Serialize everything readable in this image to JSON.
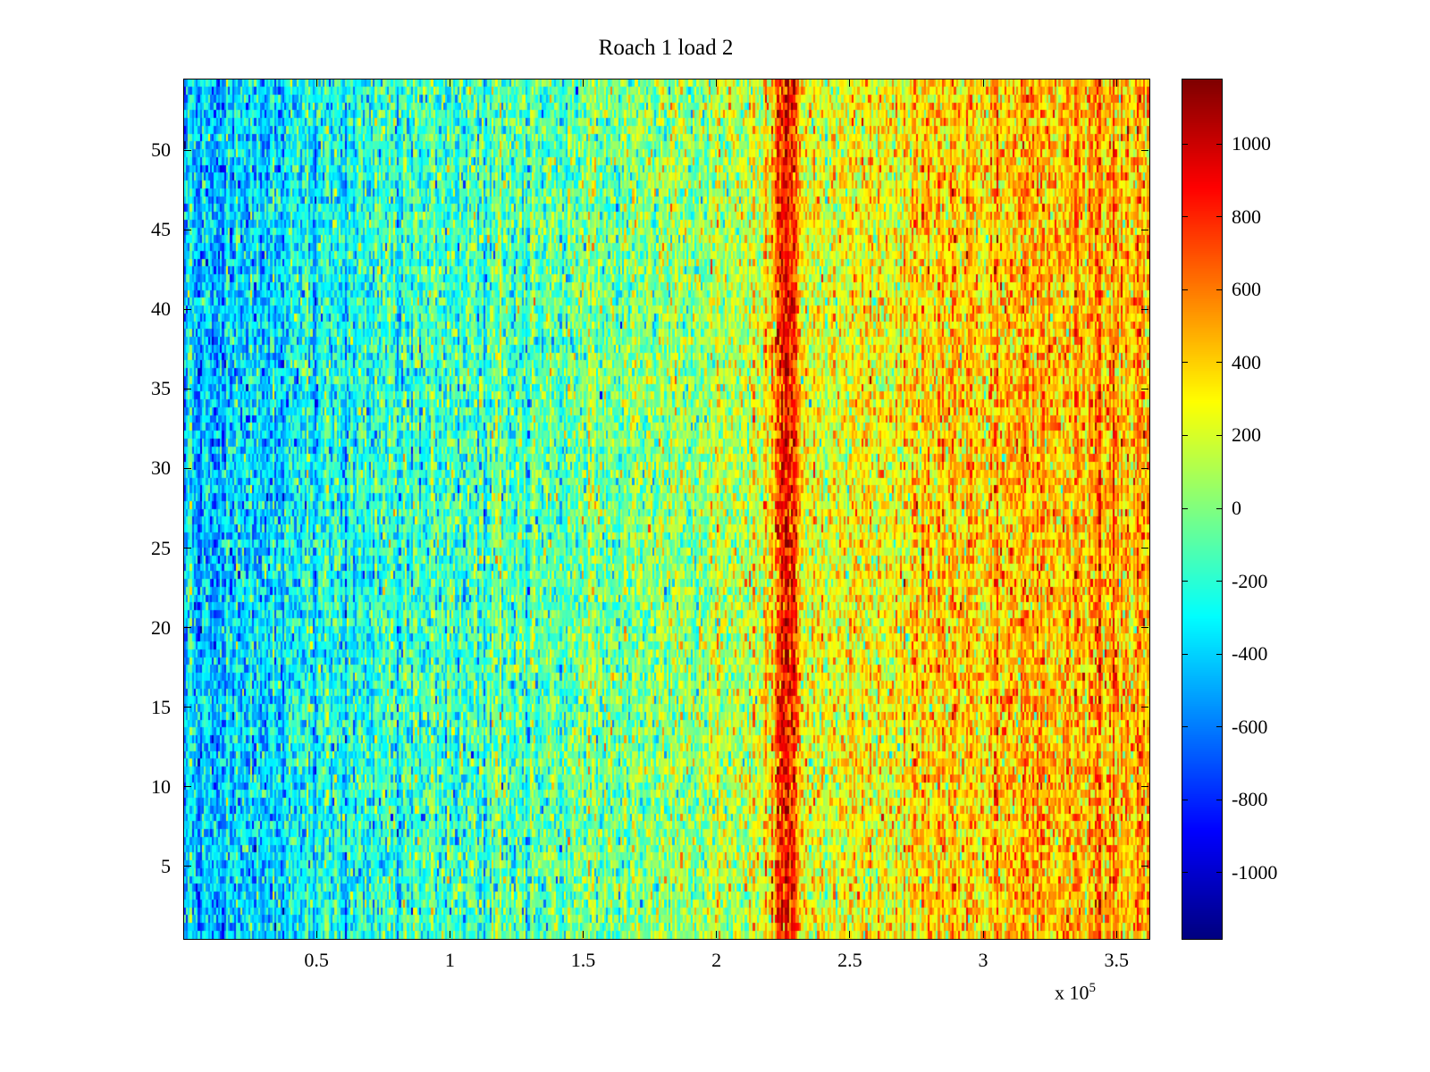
{
  "chart_data": {
    "type": "heatmap",
    "title": "Roach 1 load 2",
    "xlabel": "",
    "ylabel": "",
    "x_scale": {
      "base": "x 10",
      "exp": "5"
    },
    "xlim": [
      0,
      362000
    ],
    "ylim": [
      0.5,
      54.5
    ],
    "xticks": [
      50000,
      100000,
      150000,
      200000,
      250000,
      300000,
      350000
    ],
    "xtick_labels": [
      "0.5",
      "1",
      "1.5",
      "2",
      "2.5",
      "3",
      "3.5"
    ],
    "yticks": [
      5,
      10,
      15,
      20,
      25,
      30,
      35,
      40,
      45,
      50
    ],
    "ytick_labels": [
      "5",
      "10",
      "15",
      "20",
      "25",
      "30",
      "35",
      "40",
      "45",
      "50"
    ],
    "colormap": "jet",
    "clim": [
      -1180,
      1180
    ],
    "colorbar_ticks": [
      1000,
      800,
      600,
      400,
      200,
      0,
      -200,
      -400,
      -600,
      -800,
      -1000
    ],
    "colorbar_tick_labels": [
      "1000",
      "800",
      "600",
      "400",
      "200",
      "0",
      "-200",
      "-400",
      "-600",
      "-800",
      "-1000"
    ],
    "grid": {
      "rows": 110,
      "cols": 480,
      "data_rows": 54
    },
    "trend_profile": {
      "x": [
        0,
        30000,
        60000,
        100000,
        150000,
        200000,
        215000,
        240000,
        280000,
        320000,
        362000
      ],
      "mean": [
        -430,
        -340,
        -260,
        -160,
        -60,
        80,
        160,
        280,
        340,
        430,
        480
      ]
    },
    "band": {
      "center": 226000,
      "sigma": 3500,
      "amplitude": 680
    },
    "noise": {
      "column_std": 110,
      "cell_std": 200,
      "seed": 42
    },
    "legend": "none",
    "grid_lines": false
  }
}
